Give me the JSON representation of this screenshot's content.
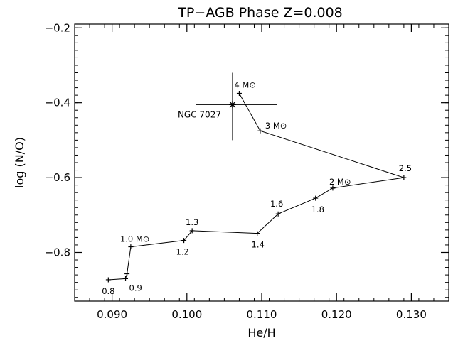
{
  "chart_data": {
    "type": "line",
    "title": "TP−AGB Phase  Z=0.008",
    "xlabel": "He/H",
    "ylabel": "log (N/O)",
    "xlim": [
      0.085,
      0.135
    ],
    "ylim": [
      -0.93,
      -0.19
    ],
    "xticks": [
      0.09,
      0.1,
      0.11,
      0.12,
      0.13
    ],
    "xtick_labels": [
      "0.090",
      "0.100",
      "0.110",
      "0.120",
      "0.130"
    ],
    "yticks": [
      -0.2,
      -0.4,
      -0.6,
      -0.8
    ],
    "ytick_labels": [
      "−0.2",
      "−0.4",
      "−0.6",
      "−0.8"
    ],
    "grid": false,
    "series": [
      {
        "points": [
          {
            "x": 0.0895,
            "y": -0.873,
            "label": "0.8"
          },
          {
            "x": 0.0918,
            "y": -0.87,
            "label": "0.9"
          },
          {
            "x": 0.092,
            "y": -0.857,
            "label": ""
          },
          {
            "x": 0.0925,
            "y": -0.785,
            "label": "1.0 M⊙"
          },
          {
            "x": 0.0996,
            "y": -0.768,
            "label": "1.2"
          },
          {
            "x": 0.1007,
            "y": -0.742,
            "label": "1.3"
          },
          {
            "x": 0.1094,
            "y": -0.749,
            "label": "1.4"
          },
          {
            "x": 0.1122,
            "y": -0.697,
            "label": "1.6"
          },
          {
            "x": 0.1172,
            "y": -0.655,
            "label": "1.8"
          },
          {
            "x": 0.1195,
            "y": -0.628,
            "label": "2 M⊙"
          },
          {
            "x": 0.129,
            "y": -0.6,
            "label": "2.5"
          },
          {
            "x": 0.1098,
            "y": -0.475,
            "label": "3 M⊙"
          },
          {
            "x": 0.107,
            "y": -0.375,
            "label": "4 M⊙"
          }
        ]
      }
    ],
    "observation": {
      "label": "NGC 7027",
      "x": 0.1061,
      "y": -0.405,
      "xerr_low": 0.0049,
      "xerr_high": 0.0059,
      "yerr_low": 0.095,
      "yerr_high": 0.085
    }
  }
}
